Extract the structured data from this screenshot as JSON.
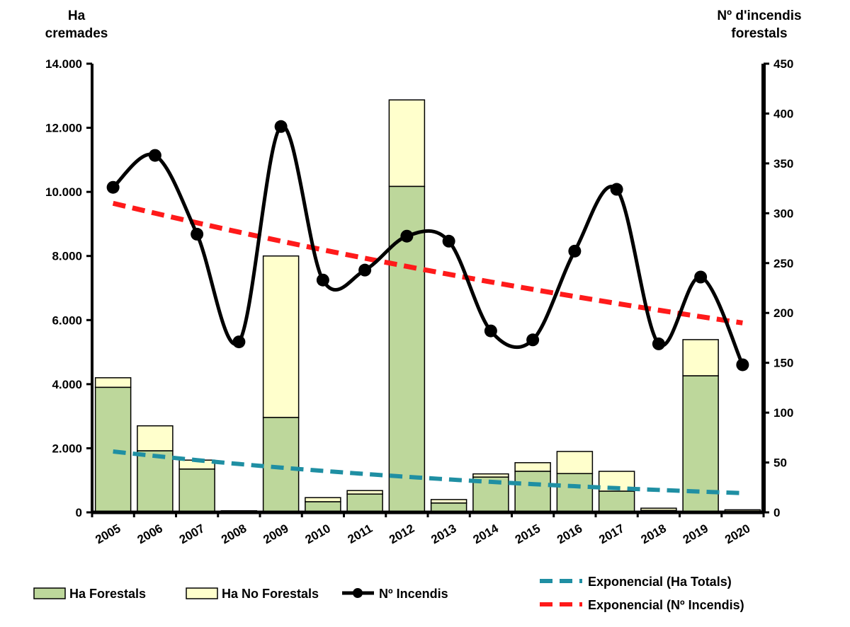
{
  "chart_data": {
    "type": "bar",
    "categories": [
      "2005",
      "2006",
      "2007",
      "2008",
      "2009",
      "2010",
      "2011",
      "2012",
      "2013",
      "2014",
      "2015",
      "2016",
      "2017",
      "2018",
      "2019",
      "2020"
    ],
    "series": [
      {
        "name": "Ha Forestals",
        "type": "stacked-bar",
        "axis": "left",
        "color": "#bdd79b",
        "values": [
          3900,
          1920,
          1350,
          30,
          2960,
          330,
          570,
          10170,
          290,
          1100,
          1280,
          1210,
          660,
          60,
          4260,
          20
        ]
      },
      {
        "name": "Ha No Forestals",
        "type": "stacked-bar",
        "axis": "left",
        "color": "#ffffcc",
        "values": [
          300,
          780,
          280,
          20,
          5040,
          130,
          110,
          2700,
          110,
          100,
          270,
          690,
          620,
          70,
          1130,
          60
        ]
      },
      {
        "name": "Nº Incendis",
        "type": "line",
        "axis": "right",
        "color": "#000000",
        "values": [
          326,
          358,
          279,
          171,
          387,
          233,
          243,
          277,
          272,
          182,
          173,
          262,
          324,
          169,
          236,
          148
        ]
      }
    ],
    "trendlines": [
      {
        "name": "Exponencial (Ha Totals)",
        "axis": "left",
        "color": "#1f8fa3",
        "start": 1900,
        "end": 600
      },
      {
        "name": "Exponencial (Nº Incendis)",
        "axis": "right",
        "color": "#ff1a1a",
        "start": 310,
        "end": 190
      }
    ],
    "ylabel": "Ha cremades",
    "ylabel_lines": [
      "Ha",
      "cremades"
    ],
    "y2label_lines": [
      "Nº d'incendis",
      "forestals"
    ],
    "ylim": [
      0,
      14000
    ],
    "y2lim": [
      0,
      450
    ],
    "yticks": [
      "0",
      "2.000",
      "4.000",
      "6.000",
      "8.000",
      "10.000",
      "12.000",
      "14.000"
    ],
    "y2ticks": [
      "0",
      "50",
      "100",
      "150",
      "200",
      "250",
      "300",
      "350",
      "400",
      "450"
    ],
    "grid": false,
    "legend_placement": "bottom"
  }
}
